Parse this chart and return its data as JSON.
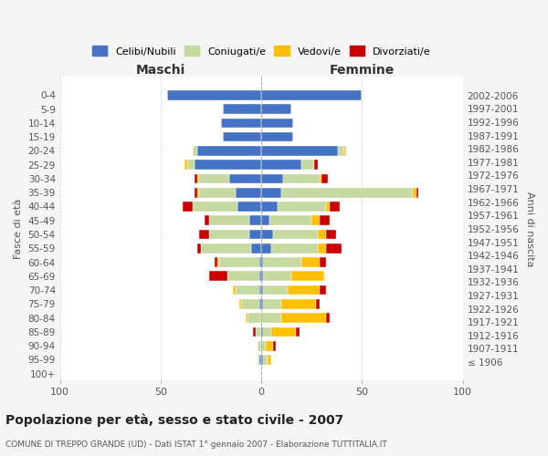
{
  "age_groups": [
    "100+",
    "95-99",
    "90-94",
    "85-89",
    "80-84",
    "75-79",
    "70-74",
    "65-69",
    "60-64",
    "55-59",
    "50-54",
    "45-49",
    "40-44",
    "35-39",
    "30-34",
    "25-29",
    "20-24",
    "15-19",
    "10-14",
    "5-9",
    "0-4"
  ],
  "birth_years": [
    "≤ 1906",
    "1907-1911",
    "1912-1916",
    "1917-1921",
    "1922-1926",
    "1927-1931",
    "1932-1936",
    "1937-1941",
    "1942-1946",
    "1947-1951",
    "1952-1956",
    "1957-1961",
    "1962-1966",
    "1967-1971",
    "1972-1976",
    "1977-1981",
    "1982-1986",
    "1987-1991",
    "1992-1996",
    "1997-2001",
    "2002-2006"
  ],
  "male": {
    "celibi": [
      0,
      1,
      0,
      0,
      0,
      1,
      1,
      1,
      1,
      5,
      6,
      6,
      12,
      13,
      16,
      33,
      32,
      19,
      20,
      19,
      47
    ],
    "coniugati": [
      0,
      1,
      2,
      3,
      7,
      9,
      12,
      16,
      20,
      25,
      20,
      20,
      22,
      18,
      15,
      4,
      2,
      0,
      0,
      0,
      0
    ],
    "vedovi": [
      0,
      0,
      0,
      0,
      1,
      1,
      1,
      0,
      1,
      0,
      0,
      0,
      0,
      1,
      1,
      1,
      0,
      0,
      0,
      0,
      0
    ],
    "divorziati": [
      0,
      0,
      0,
      1,
      0,
      0,
      0,
      9,
      1,
      2,
      5,
      2,
      5,
      1,
      1,
      0,
      0,
      0,
      0,
      0,
      0
    ]
  },
  "female": {
    "nubili": [
      0,
      1,
      0,
      1,
      0,
      1,
      1,
      1,
      1,
      5,
      6,
      4,
      8,
      10,
      11,
      20,
      38,
      16,
      16,
      15,
      50
    ],
    "coniugate": [
      0,
      2,
      2,
      4,
      10,
      9,
      12,
      14,
      19,
      23,
      22,
      21,
      24,
      65,
      18,
      6,
      3,
      0,
      0,
      0,
      0
    ],
    "vedove": [
      0,
      2,
      4,
      12,
      22,
      17,
      16,
      16,
      9,
      4,
      4,
      4,
      2,
      2,
      1,
      0,
      1,
      0,
      0,
      0,
      0
    ],
    "divorziate": [
      0,
      0,
      1,
      2,
      2,
      2,
      3,
      0,
      3,
      8,
      5,
      5,
      5,
      1,
      3,
      2,
      0,
      0,
      0,
      0,
      0
    ]
  },
  "colors": {
    "celibi": "#4472c4",
    "coniugati": "#c5d9a0",
    "vedovi": "#ffc000",
    "divorziati": "#cc0000"
  },
  "title": "Popolazione per età, sesso e stato civile - 2007",
  "subtitle": "COMUNE DI TREPPO GRANDE (UD) - Dati ISTAT 1° gennaio 2007 - Elaborazione TUTTITALIA.IT",
  "xlabel_left": "Maschi",
  "xlabel_right": "Femmine",
  "ylabel_left": "Fasce di età",
  "ylabel_right": "Anni di nascita",
  "xlim": 100,
  "bg_color": "#f5f5f5",
  "plot_bg": "#ffffff",
  "legend_labels": [
    "Celibi/Nubili",
    "Coniugati/e",
    "Vedovi/e",
    "Divorziati/e"
  ]
}
